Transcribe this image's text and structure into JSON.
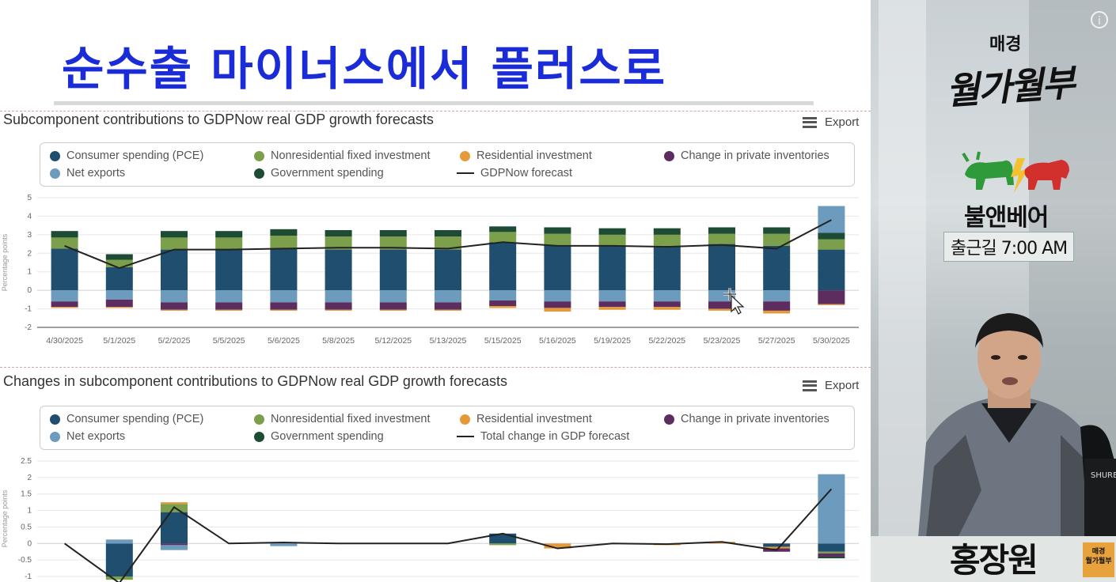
{
  "headline": "순수출 마이너스에서 플러스로",
  "sidebar": {
    "brand_small": "매경",
    "brand_big": "월가월부",
    "show_name": "불앤베어",
    "time_badge": "출근길 7:00 AM",
    "host_name": "홍장원",
    "mini_logo_top": "매경",
    "mini_logo_bottom": "월가월부",
    "info_icon": "i"
  },
  "export_label": "Export",
  "colors": {
    "pce": "#1f4e6e",
    "nonres": "#7b9f4a",
    "residential": "#e59a3a",
    "inventories": "#5c2d5e",
    "netexports": "#6c9bbd",
    "government": "#1e4b33",
    "line": "#222222",
    "headline": "#1a2bd8"
  },
  "chart_data": [
    {
      "type": "bar",
      "stacked": true,
      "title": "Subcomponent contributions to GDPNow real GDP growth forecasts",
      "ylabel": "Percentage points",
      "ylim": [
        -2,
        5
      ],
      "yticks": [
        5,
        4,
        3,
        2,
        1,
        0,
        -1,
        -2
      ],
      "grid": true,
      "legend_position": "top",
      "legend": [
        "Consumer spending (PCE)",
        "Nonresidential fixed investment",
        "Residential investment",
        "Change in private inventories",
        "Net exports",
        "Government spending",
        "GDPNow forecast"
      ],
      "categories": [
        "4/30/2025",
        "5/1/2025",
        "5/2/2025",
        "5/5/2025",
        "5/6/2025",
        "5/8/2025",
        "5/12/2025",
        "5/13/2025",
        "5/15/2025",
        "5/16/2025",
        "5/19/2025",
        "5/22/2025",
        "5/23/2025",
        "5/27/2025",
        "5/30/2025"
      ],
      "series": [
        {
          "name": "Consumer spending (PCE)",
          "key": "pce",
          "values": [
            2.25,
            1.25,
            2.2,
            2.2,
            2.25,
            2.2,
            2.2,
            2.2,
            2.6,
            2.45,
            2.4,
            2.4,
            2.5,
            2.4,
            2.2
          ]
        },
        {
          "name": "Nonresidential fixed investment",
          "key": "nonres",
          "values": [
            0.6,
            0.4,
            0.65,
            0.65,
            0.7,
            0.7,
            0.7,
            0.7,
            0.55,
            0.6,
            0.6,
            0.6,
            0.55,
            0.65,
            0.55
          ]
        },
        {
          "name": "Government spending",
          "key": "government",
          "values": [
            0.35,
            0.3,
            0.35,
            0.35,
            0.35,
            0.35,
            0.35,
            0.35,
            0.3,
            0.35,
            0.35,
            0.35,
            0.35,
            0.35,
            0.35
          ]
        },
        {
          "name": "Net exports",
          "key": "netexports",
          "values": [
            -0.6,
            -0.5,
            -0.65,
            -0.65,
            -0.65,
            -0.65,
            -0.65,
            -0.65,
            -0.55,
            -0.6,
            -0.6,
            -0.6,
            -0.6,
            -0.6,
            1.45
          ]
        },
        {
          "name": "Change in private inventories",
          "key": "inventories",
          "values": [
            -0.3,
            -0.4,
            -0.4,
            -0.4,
            -0.4,
            -0.4,
            -0.4,
            -0.4,
            -0.3,
            -0.35,
            -0.3,
            -0.3,
            -0.4,
            -0.5,
            -0.75
          ]
        },
        {
          "name": "Residential investment",
          "key": "residential",
          "values": [
            -0.05,
            -0.05,
            -0.05,
            -0.05,
            -0.05,
            -0.05,
            -0.05,
            -0.05,
            -0.1,
            -0.2,
            -0.15,
            -0.15,
            -0.1,
            -0.15,
            -0.05
          ]
        },
        {
          "name": "GDPNow forecast",
          "key": "line",
          "type": "line",
          "values": [
            2.4,
            1.2,
            2.2,
            2.2,
            2.25,
            2.3,
            2.3,
            2.25,
            2.6,
            2.4,
            2.4,
            2.35,
            2.45,
            2.25,
            3.8
          ]
        }
      ]
    },
    {
      "type": "bar",
      "stacked": true,
      "title": "Changes in subcomponent contributions to GDPNow real GDP growth forecasts",
      "ylabel": "Percentage points",
      "ylim": [
        -1,
        2.5
      ],
      "yticks": [
        2.5,
        2,
        1.5,
        1,
        0.5,
        0,
        -0.5,
        -1
      ],
      "grid": true,
      "legend_position": "top",
      "legend": [
        "Consumer spending (PCE)",
        "Nonresidential fixed investment",
        "Residential investment",
        "Change in private inventories",
        "Net exports",
        "Government spending",
        "Total change in GDP forecast"
      ],
      "series": [
        {
          "name": "Consumer spending (PCE)",
          "key": "pce",
          "values": [
            0,
            -1.0,
            0.95,
            0,
            0.0,
            0,
            0,
            0,
            0.3,
            0,
            0,
            0,
            0,
            -0.1,
            -0.25
          ]
        },
        {
          "name": "Nonresidential fixed investment",
          "key": "nonres",
          "values": [
            0,
            -0.1,
            0.25,
            0,
            0,
            0,
            0,
            0,
            -0.05,
            0,
            0,
            0,
            0,
            0,
            -0.05
          ]
        },
        {
          "name": "Residential investment",
          "key": "residential",
          "values": [
            0,
            0,
            0.05,
            0,
            0,
            0,
            0,
            0,
            0,
            -0.15,
            0,
            -0.05,
            0.05,
            -0.05,
            0
          ]
        },
        {
          "name": "Change in private inventories",
          "key": "inventories",
          "values": [
            0,
            0,
            -0.05,
            0,
            0,
            0,
            0,
            0,
            0,
            0,
            0,
            0,
            0,
            -0.1,
            -0.1
          ]
        },
        {
          "name": "Net exports",
          "key": "netexports",
          "values": [
            0,
            0.12,
            -0.15,
            0,
            -0.08,
            0,
            0,
            0,
            0,
            0,
            0,
            0,
            0,
            0,
            2.1
          ]
        },
        {
          "name": "Government spending",
          "key": "government",
          "values": [
            0,
            0,
            0,
            0,
            0,
            0,
            0,
            0,
            0,
            0,
            0,
            0,
            0,
            0,
            -0.05
          ]
        },
        {
          "name": "Total change in GDP forecast",
          "key": "line",
          "type": "line",
          "values": [
            0,
            -1.2,
            1.1,
            0,
            0.03,
            0,
            0,
            0,
            0.3,
            -0.15,
            0,
            -0.02,
            0.05,
            -0.2,
            1.65
          ]
        }
      ]
    }
  ]
}
